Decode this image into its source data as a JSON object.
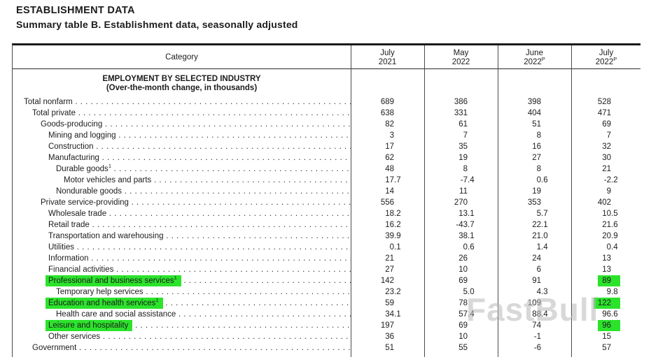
{
  "header": {
    "title": "ESTABLISHMENT DATA",
    "subtitle": "Summary table B. Establishment data, seasonally adjusted"
  },
  "watermark": "FastBull",
  "highlight_color": "#2ce32c",
  "table": {
    "category_header": "Category",
    "columns": [
      {
        "month": "July",
        "year": "2021",
        "sup": ""
      },
      {
        "month": "May",
        "year": "2022",
        "sup": ""
      },
      {
        "month": "June",
        "year": "2022",
        "sup": "P"
      },
      {
        "month": "July",
        "year": "2022",
        "sup": "P"
      }
    ],
    "section_line1": "EMPLOYMENT BY SELECTED INDUSTRY",
    "section_line2": "(Over-the-month change, in thousands)",
    "rows": [
      {
        "label": "Total nonfarm",
        "indent": 0,
        "values": [
          "689",
          "386",
          "398",
          "528"
        ]
      },
      {
        "label": "Total private",
        "indent": 1,
        "values": [
          "638",
          "331",
          "404",
          "471"
        ]
      },
      {
        "label": "Goods-producing",
        "indent": 2,
        "values": [
          "82",
          "61",
          "51",
          "69"
        ]
      },
      {
        "label": "Mining and logging",
        "indent": 3,
        "values": [
          "3",
          "7",
          "8",
          "7"
        ]
      },
      {
        "label": "Construction",
        "indent": 3,
        "values": [
          "17",
          "35",
          "16",
          "32"
        ]
      },
      {
        "label": "Manufacturing",
        "indent": 3,
        "values": [
          "62",
          "19",
          "27",
          "30"
        ]
      },
      {
        "label": "Durable goods",
        "sup": "1",
        "indent": 4,
        "values": [
          "48",
          "8",
          "8",
          "21"
        ]
      },
      {
        "label": "Motor vehicles and parts",
        "indent": 5,
        "values": [
          "17.7",
          "-7.4",
          "0.6",
          "-2.2"
        ]
      },
      {
        "label": "Nondurable goods",
        "indent": 4,
        "values": [
          "14",
          "11",
          "19",
          "9"
        ]
      },
      {
        "label": "Private service-providing",
        "indent": 2,
        "values": [
          "556",
          "270",
          "353",
          "402"
        ]
      },
      {
        "label": "Wholesale trade",
        "indent": 3,
        "values": [
          "18.2",
          "13.1",
          "5.7",
          "10.5"
        ]
      },
      {
        "label": "Retail trade",
        "indent": 3,
        "values": [
          "16.2",
          "-43.7",
          "22.1",
          "21.6"
        ]
      },
      {
        "label": "Transportation and warehousing",
        "indent": 3,
        "values": [
          "39.9",
          "38.1",
          "21.0",
          "20.9"
        ]
      },
      {
        "label": "Utilities",
        "indent": 3,
        "values": [
          "0.1",
          "0.6",
          "1.4",
          "0.4"
        ]
      },
      {
        "label": "Information",
        "indent": 3,
        "values": [
          "21",
          "26",
          "24",
          "13"
        ]
      },
      {
        "label": "Financial activities",
        "indent": 3,
        "values": [
          "27",
          "10",
          "6",
          "13"
        ]
      },
      {
        "label": "Professional and business services",
        "sup": "1",
        "indent": 3,
        "values": [
          "142",
          "69",
          "91",
          "89"
        ],
        "hl_label": true,
        "hl_value": 3
      },
      {
        "label": "Temporary help services",
        "indent": 4,
        "values": [
          "23.2",
          "5.0",
          "4.3",
          "9.8"
        ]
      },
      {
        "label": "Education and health services",
        "sup": "1",
        "indent": 3,
        "values": [
          "59",
          "78",
          "109",
          "122"
        ],
        "hl_label": true,
        "hl_value": 3
      },
      {
        "label": "Health care and social assistance",
        "indent": 4,
        "values": [
          "34.1",
          "57.4",
          "88.4",
          "96.6"
        ]
      },
      {
        "label": "Leisure and hospitality",
        "indent": 3,
        "values": [
          "197",
          "69",
          "74",
          "96"
        ],
        "hl_label": true,
        "hl_value": 3
      },
      {
        "label": "Other services",
        "indent": 3,
        "values": [
          "36",
          "10",
          "-1",
          "15"
        ]
      },
      {
        "label": "Government",
        "indent": 1,
        "values": [
          "51",
          "55",
          "-6",
          "57"
        ]
      }
    ]
  }
}
